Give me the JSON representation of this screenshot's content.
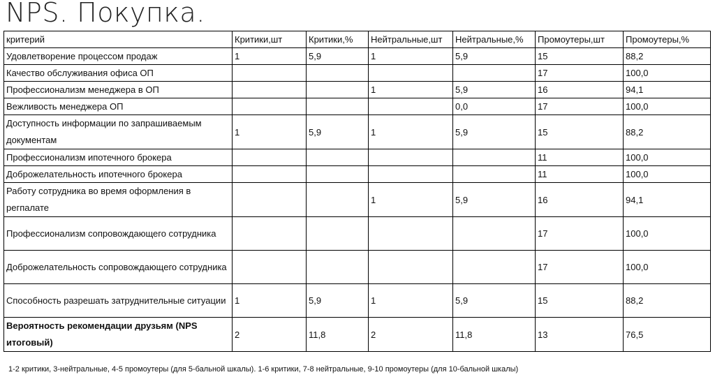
{
  "title": "NPS. Покупка.",
  "table": {
    "headers": [
      "критерий",
      "Критики,шт",
      "Критики,%",
      "Нейтральные,шт",
      "Нейтральные,%",
      "Промоутеры,шт",
      "Промоутеры,%"
    ],
    "rows": [
      {
        "cells": [
          "Удовлетворение процессом продаж",
          "1",
          "5,9",
          "1",
          "5,9",
          "15",
          "88,2"
        ],
        "tall": false
      },
      {
        "cells": [
          "Качество обслуживания офиса ОП",
          "",
          "",
          "",
          "",
          "17",
          "100,0"
        ],
        "tall": false
      },
      {
        "cells": [
          "Профессионализм  менеджера в ОП",
          "",
          "",
          "1",
          "5,9",
          "16",
          "94,1"
        ],
        "tall": false
      },
      {
        "cells": [
          "Вежливость менеджера ОП",
          "",
          "",
          "",
          "0,0",
          "17",
          "100,0"
        ],
        "tall": false
      },
      {
        "cells": [
          "Доступность информации по запрашиваемым документам",
          "1",
          "5,9",
          "1",
          "5,9",
          "15",
          "88,2"
        ],
        "tall": true
      },
      {
        "cells": [
          "Профессионализм  ипотечного брокера",
          "",
          "",
          "",
          "",
          "11",
          "100,0"
        ],
        "tall": false
      },
      {
        "cells": [
          "Доброжелательность ипотечного брокера",
          "",
          "",
          "",
          "",
          "11",
          "100,0"
        ],
        "tall": false
      },
      {
        "cells": [
          "Работу сотрудника во время оформления в регпалате",
          "",
          "",
          "1",
          "5,9",
          "16",
          "94,1"
        ],
        "tall": true
      },
      {
        "cells": [
          "Профессионализм сопровождающего сотрудника",
          "",
          "",
          "",
          "",
          "17",
          "100,0"
        ],
        "tall": true
      },
      {
        "cells": [
          "Доброжелательность сопровождающего сотрудника",
          "",
          "",
          "",
          "",
          "17",
          "100,0"
        ],
        "tall": true
      },
      {
        "cells": [
          "Способность разрешать затруднительные ситуации",
          "1",
          "5,9",
          "1",
          "5,9",
          "15",
          "88,2"
        ],
        "tall": true
      },
      {
        "cells": [
          "Вероятность рекомендации друзьям (NPS итоговый)",
          "2",
          "11,8",
          "2",
          "11,8",
          "13",
          "76,5"
        ],
        "tall": true,
        "total": true
      }
    ]
  },
  "footnote": "1-2 критики, 3-нейтральные, 4-5 промоутеры (для 5-бальной шкалы). 1-6 критики, 7-8 нейтральные, 9-10 промоутеры (для 10-бальной шкалы)"
}
